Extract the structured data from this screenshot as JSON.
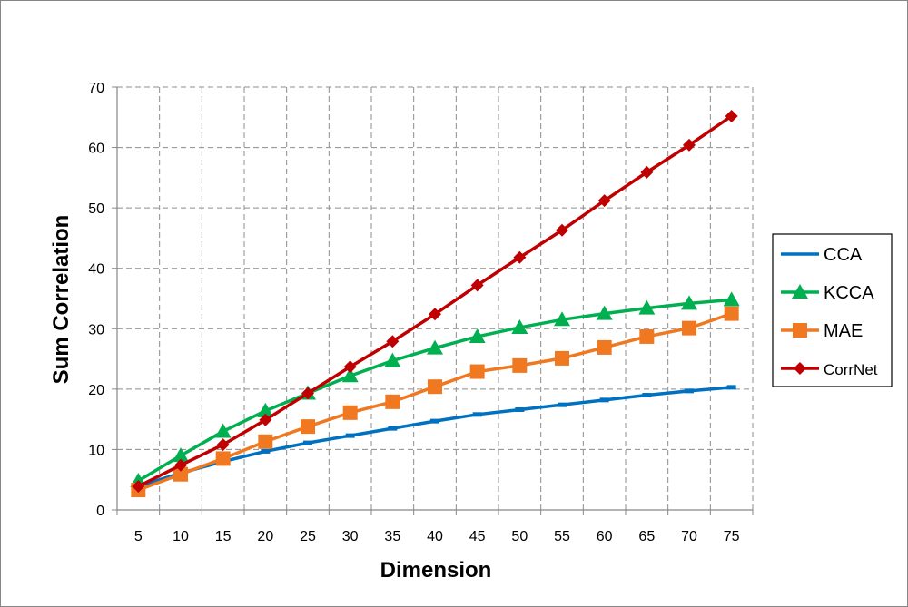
{
  "chart_data": {
    "type": "line",
    "xlabel": "Dimension",
    "ylabel": "Sum Correlation",
    "ylim": [
      0,
      70
    ],
    "yticks": [
      0,
      10,
      20,
      30,
      40,
      50,
      60,
      70
    ],
    "grid": true,
    "legend_position": "right",
    "categories": [
      "5",
      "10",
      "15",
      "20",
      "25",
      "30",
      "35",
      "40",
      "45",
      "50",
      "55",
      "60",
      "65",
      "70",
      "75"
    ],
    "series": [
      {
        "name": "CCA",
        "marker": "dash",
        "color": "#0070C0",
        "values": [
          3.9,
          6.1,
          8.0,
          9.7,
          11.1,
          12.3,
          13.5,
          14.7,
          15.8,
          16.6,
          17.4,
          18.2,
          19.0,
          19.7,
          20.3
        ]
      },
      {
        "name": "KCCA",
        "marker": "triangle",
        "color": "#00B050",
        "values": [
          4.8,
          9.0,
          13.0,
          16.4,
          19.3,
          22.2,
          24.7,
          26.8,
          28.7,
          30.2,
          31.5,
          32.5,
          33.4,
          34.2,
          34.8
        ]
      },
      {
        "name": "MAE",
        "marker": "square",
        "color": "#F07820",
        "values": [
          3.3,
          5.9,
          8.5,
          11.3,
          13.8,
          16.1,
          17.9,
          20.4,
          22.9,
          23.9,
          25.1,
          26.9,
          28.7,
          30.1,
          32.5
        ]
      },
      {
        "name": "CorrNet",
        "marker": "diamond",
        "color": "#C00000",
        "values": [
          3.9,
          7.4,
          10.8,
          14.9,
          19.3,
          23.7,
          27.9,
          32.4,
          37.2,
          41.8,
          46.3,
          51.2,
          55.9,
          60.4,
          65.2
        ]
      }
    ]
  }
}
